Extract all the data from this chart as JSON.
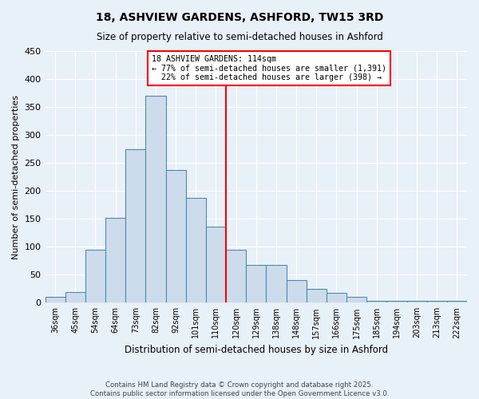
{
  "title": "18, ASHVIEW GARDENS, ASHFORD, TW15 3RD",
  "subtitle": "Size of property relative to semi-detached houses in Ashford",
  "xlabel": "Distribution of semi-detached houses by size in Ashford",
  "ylabel": "Number of semi-detached properties",
  "bar_color": "#ccdcec",
  "bar_edge_color": "#5588aa",
  "background_color": "#e8f0f8",
  "categories": [
    "36sqm",
    "45sqm",
    "54sqm",
    "64sqm",
    "73sqm",
    "82sqm",
    "92sqm",
    "101sqm",
    "110sqm",
    "120sqm",
    "129sqm",
    "138sqm",
    "148sqm",
    "157sqm",
    "166sqm",
    "175sqm",
    "185sqm",
    "194sqm",
    "203sqm",
    "213sqm",
    "222sqm"
  ],
  "values": [
    10,
    19,
    95,
    152,
    275,
    370,
    237,
    188,
    136,
    95,
    67,
    67,
    40,
    24,
    18,
    10,
    4,
    4,
    4,
    4,
    4
  ],
  "property_label": "18 ASHVIEW GARDENS: 114sqm",
  "pct_smaller": 77,
  "n_smaller": 1391,
  "pct_larger": 22,
  "n_larger": 398,
  "vline_bin_index": 8,
  "ylim": [
    0,
    450
  ],
  "yticks": [
    0,
    50,
    100,
    150,
    200,
    250,
    300,
    350,
    400,
    450
  ],
  "footnote1": "Contains HM Land Registry data © Crown copyright and database right 2025.",
  "footnote2": "Contains public sector information licensed under the Open Government Licence v3.0."
}
